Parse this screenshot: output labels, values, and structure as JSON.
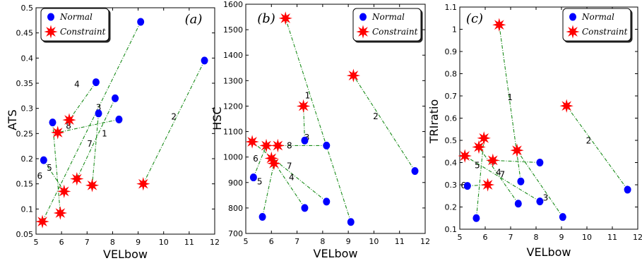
{
  "chart_data": [
    {
      "type": "scatter",
      "panel_label": "(a)",
      "xlabel": "VELbow",
      "ylabel": "ATS",
      "xlim": [
        5,
        12
      ],
      "ylim": [
        0.05,
        0.5
      ],
      "xticks": [
        5,
        6,
        7,
        8,
        9,
        10,
        11,
        12
      ],
      "yticks": [
        0.05,
        0.1,
        0.15,
        0.2,
        0.25,
        0.3,
        0.35,
        0.4,
        0.45,
        0.5
      ],
      "ytick_labels": [
        "0.05",
        "0.1",
        "0.15",
        "0.2",
        "0.25",
        "0.3",
        "0.35",
        "0.4",
        "0.45",
        "0.5"
      ],
      "legend": {
        "position": "top-left",
        "entries": [
          "Normal",
          "Constraint"
        ]
      },
      "pairs": [
        {
          "label": "1",
          "normal": [
            8.1,
            0.32
          ],
          "constraint": [
            6.6,
            0.16
          ]
        },
        {
          "label": "2",
          "normal": [
            11.6,
            0.395
          ],
          "constraint": [
            9.2,
            0.15
          ]
        },
        {
          "label": "3",
          "normal": [
            9.1,
            0.472
          ],
          "constraint": [
            5.25,
            0.075
          ]
        },
        {
          "label": "4",
          "normal": [
            7.35,
            0.352
          ],
          "constraint": [
            6.3,
            0.277
          ]
        },
        {
          "label": "5",
          "normal": [
            5.65,
            0.272
          ],
          "constraint": [
            5.95,
            0.092
          ]
        },
        {
          "label": "6",
          "normal": [
            5.3,
            0.197
          ],
          "constraint": [
            6.1,
            0.135
          ]
        },
        {
          "label": "7",
          "normal": [
            7.45,
            0.29
          ],
          "constraint": [
            7.2,
            0.147
          ]
        },
        {
          "label": "8",
          "normal": [
            8.25,
            0.278
          ],
          "constraint": [
            5.85,
            0.252
          ]
        }
      ]
    },
    {
      "type": "scatter",
      "panel_label": "(b)",
      "xlabel": "VELbow",
      "ylabel": "HSC",
      "xlim": [
        5,
        12
      ],
      "ylim": [
        700,
        1600
      ],
      "xticks": [
        5,
        6,
        7,
        8,
        9,
        10,
        11,
        12
      ],
      "yticks": [
        700,
        800,
        900,
        1000,
        1100,
        1200,
        1300,
        1400,
        1500,
        1600
      ],
      "ytick_labels": [
        "700",
        "800",
        "900",
        "1000",
        "1100",
        "1200",
        "1300",
        "1400",
        "1500",
        "1600"
      ],
      "legend": {
        "position": "top-right",
        "entries": [
          "Normal",
          "Constraint"
        ]
      },
      "pairs": [
        {
          "label": "1",
          "normal": [
            9.1,
            745
          ],
          "constraint": [
            6.55,
            1545
          ]
        },
        {
          "label": "2",
          "normal": [
            11.6,
            945
          ],
          "constraint": [
            9.2,
            1320
          ]
        },
        {
          "label": "3",
          "normal": [
            7.3,
            1065
          ],
          "constraint": [
            7.25,
            1200
          ]
        },
        {
          "label": "4",
          "normal": [
            7.3,
            800
          ],
          "constraint": [
            6.0,
            995
          ]
        },
        {
          "label": "5",
          "normal": [
            5.65,
            765
          ],
          "constraint": [
            6.1,
            975
          ]
        },
        {
          "label": "6",
          "normal": [
            5.3,
            920
          ],
          "constraint": [
            5.8,
            1045
          ]
        },
        {
          "label": "7",
          "normal": [
            8.15,
            825
          ],
          "constraint": [
            5.25,
            1060
          ]
        },
        {
          "label": "8",
          "normal": [
            8.15,
            1045
          ],
          "constraint": [
            6.25,
            1045
          ]
        }
      ]
    },
    {
      "type": "scatter",
      "panel_label": "(c)",
      "xlabel": "VELbow",
      "ylabel": "TRIratio",
      "xlim": [
        5,
        12
      ],
      "ylim": [
        0.1,
        1.1
      ],
      "xticks": [
        5,
        6,
        7,
        8,
        9,
        10,
        11,
        12
      ],
      "yticks": [
        0.1,
        0.2,
        0.3,
        0.4,
        0.5,
        0.6,
        0.7,
        0.8,
        0.9,
        1,
        1.1
      ],
      "ytick_labels": [
        "0.1",
        "0.2",
        "0.3",
        "0.4",
        "0.5",
        "0.6",
        "0.7",
        "0.8",
        "0.9",
        "1",
        "1.1"
      ],
      "legend": {
        "position": "top-right",
        "entries": [
          "Normal",
          "Constraint"
        ]
      },
      "pairs": [
        {
          "label": "1",
          "normal": [
            7.4,
            0.315
          ],
          "constraint": [
            6.55,
            1.02
          ]
        },
        {
          "label": "2",
          "normal": [
            11.6,
            0.278
          ],
          "constraint": [
            9.2,
            0.655
          ]
        },
        {
          "label": "3",
          "normal": [
            9.05,
            0.155
          ],
          "constraint": [
            7.25,
            0.455
          ]
        },
        {
          "label": "4",
          "normal": [
            7.3,
            0.215
          ],
          "constraint": [
            5.75,
            0.47
          ]
        },
        {
          "label": "5",
          "normal": [
            5.65,
            0.15
          ],
          "constraint": [
            5.95,
            0.51
          ]
        },
        {
          "label": "6",
          "normal": [
            5.3,
            0.295
          ],
          "constraint": [
            6.1,
            0.3
          ]
        },
        {
          "label": "7",
          "normal": [
            8.15,
            0.225
          ],
          "constraint": [
            5.2,
            0.43
          ]
        },
        {
          "label": "8",
          "normal": [
            8.15,
            0.4
          ],
          "constraint": [
            6.3,
            0.41
          ]
        }
      ]
    }
  ],
  "colors": {
    "normal": "#0000ff",
    "constraint": "#ff0000",
    "connector": "#1a8c1a",
    "axis": "#000000"
  },
  "marker_icons": {
    "normal": "filled-circle",
    "constraint": "eight-point-star"
  }
}
